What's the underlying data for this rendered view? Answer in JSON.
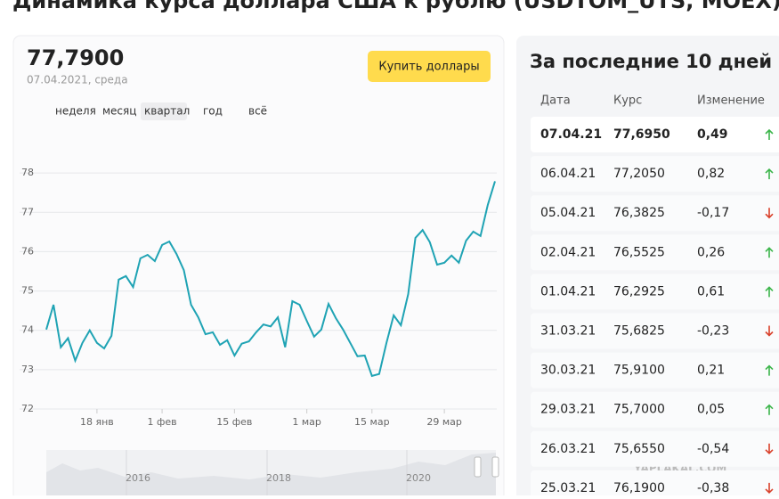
{
  "header": {
    "title": "Динамика курса доллара США к рублю (USDTOM_UTS, MOEX)"
  },
  "quote": {
    "price": "77,7900",
    "date": "07.04.2021, среда",
    "button": "Купить доллары",
    "periods": [
      "неделя",
      "месяц",
      "квартал",
      "год",
      "всё"
    ],
    "active_period": 2
  },
  "chart_data": {
    "type": "line",
    "categories": [
      null,
      null,
      null,
      null,
      null,
      null,
      null,
      "18 янв",
      null,
      null,
      null,
      null,
      null,
      null,
      null,
      null,
      "1 фев",
      null,
      null,
      null,
      null,
      null,
      null,
      null,
      null,
      null,
      "15 фев",
      null,
      null,
      null,
      null,
      null,
      null,
      null,
      null,
      null,
      "1 мар",
      null,
      null,
      null,
      null,
      null,
      null,
      null,
      null,
      "15 мар",
      null,
      null,
      null,
      null,
      null,
      null,
      null,
      null,
      null,
      "29 мар",
      null,
      null,
      null,
      null,
      null,
      null,
      null
    ],
    "series": [
      {
        "color": "#1fa3b4",
        "values": [
          74.02,
          74.65,
          73.57,
          73.8,
          73.23,
          73.68,
          74.0,
          73.68,
          73.54,
          73.86,
          75.29,
          75.38,
          75.1,
          75.83,
          75.92,
          75.76,
          76.17,
          76.26,
          75.94,
          75.53,
          74.65,
          74.33,
          73.9,
          73.95,
          73.63,
          73.75,
          73.36,
          73.66,
          73.72,
          73.95,
          74.15,
          74.1,
          74.33,
          73.57,
          74.74,
          74.65,
          74.24,
          73.84,
          74.02,
          74.67,
          74.31,
          74.02,
          73.68,
          73.34,
          73.36,
          72.84,
          72.89,
          73.68,
          74.38,
          74.13,
          74.92,
          76.35,
          76.55,
          76.24,
          75.67,
          75.72,
          75.9,
          75.72,
          76.28,
          76.51,
          76.4,
          77.19,
          77.79
        ]
      }
    ],
    "ylim": [
      72,
      79
    ],
    "yticks": [
      72,
      73,
      74,
      75,
      76,
      77,
      78
    ],
    "grid": true
  },
  "navigator": {
    "years": [
      "2016",
      "2018",
      "2020"
    ]
  },
  "table": {
    "title": "За последние 10 дней",
    "columns": [
      "Дата",
      "Курс",
      "Изменение"
    ],
    "rows": [
      [
        "07.04.21",
        "77,6950",
        "0,49"
      ],
      [
        "06.04.21",
        "77,2050",
        "0,82"
      ],
      [
        "05.04.21",
        "76,3825",
        "-0,17"
      ],
      [
        "02.04.21",
        "76,5525",
        "0,26"
      ],
      [
        "01.04.21",
        "76,2925",
        "0,61"
      ],
      [
        "31.03.21",
        "75,6825",
        "-0,23"
      ],
      [
        "30.03.21",
        "75,9100",
        "0,21"
      ],
      [
        "29.03.21",
        "75,7000",
        "0,05"
      ],
      [
        "26.03.21",
        "75,6550",
        "-0,54"
      ],
      [
        "25.03.21",
        "76,1900",
        "-0,38"
      ]
    ]
  },
  "watermark": "YAPLAKAL.COM"
}
